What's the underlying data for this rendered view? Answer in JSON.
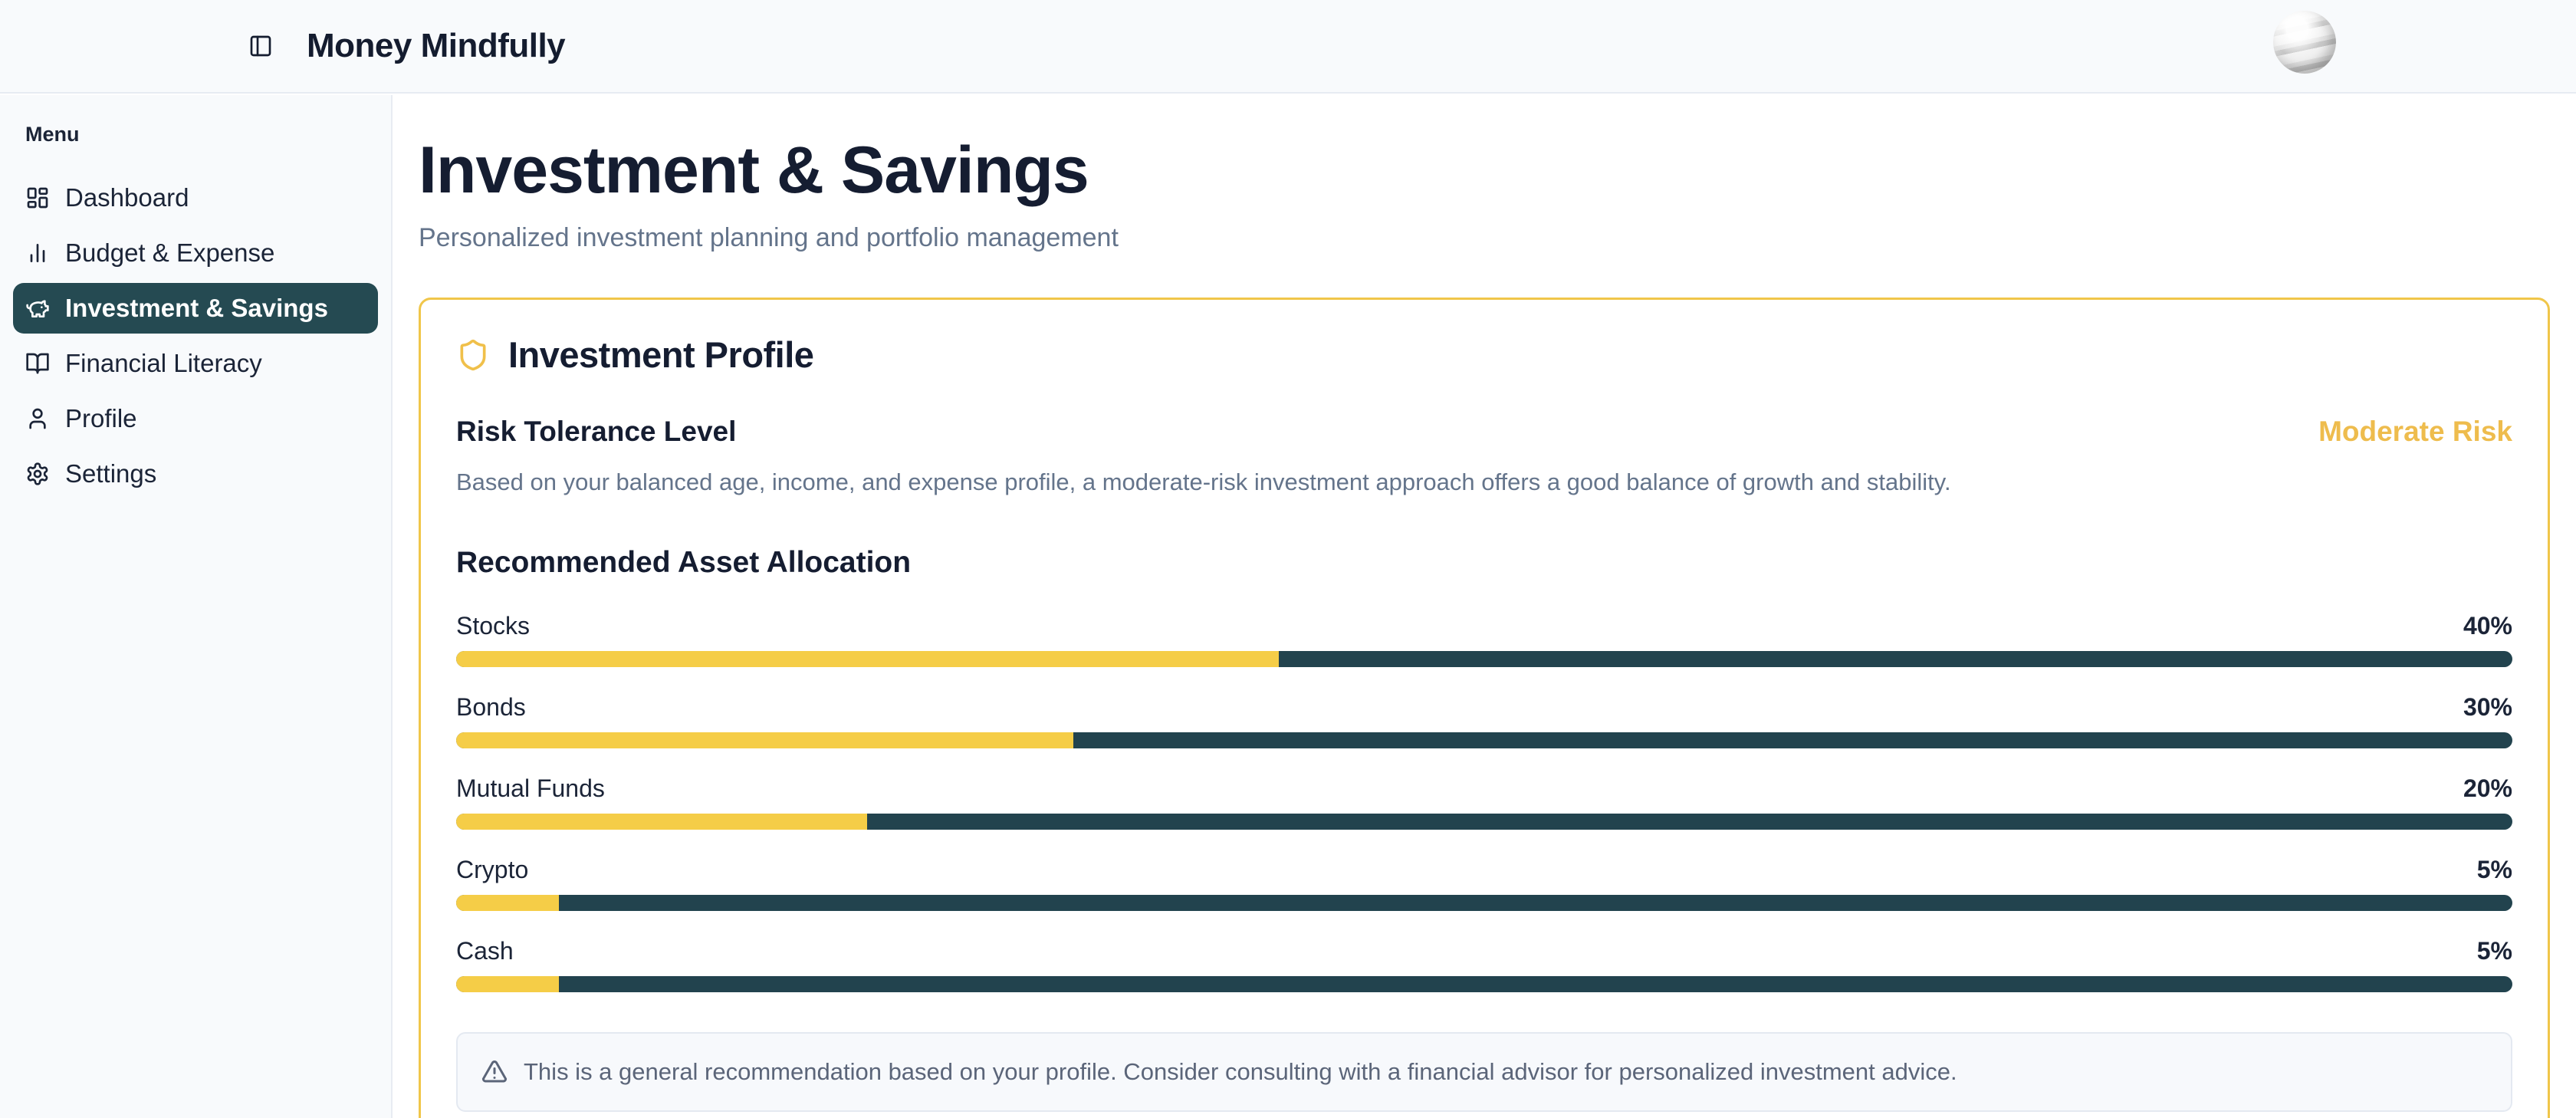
{
  "app": {
    "title": "Money Mindfully"
  },
  "sidebar": {
    "menu_label": "Menu",
    "items": [
      {
        "label": "Dashboard",
        "icon": "dashboard-icon",
        "active": false
      },
      {
        "label": "Budget & Expense",
        "icon": "bar-chart-icon",
        "active": false
      },
      {
        "label": "Investment & Savings",
        "icon": "piggy-bank-icon",
        "active": true
      },
      {
        "label": "Financial Literacy",
        "icon": "book-open-icon",
        "active": false
      },
      {
        "label": "Profile",
        "icon": "user-icon",
        "active": false
      },
      {
        "label": "Settings",
        "icon": "gear-icon",
        "active": false
      }
    ]
  },
  "page": {
    "title": "Investment & Savings",
    "subtitle": "Personalized investment planning and portfolio management"
  },
  "card": {
    "title": "Investment Profile",
    "icon": "shield-icon",
    "risk": {
      "heading": "Risk Tolerance Level",
      "level": "Moderate Risk",
      "description": "Based on your balanced age, income, and expense profile, a moderate-risk investment approach offers a good balance of growth and stability."
    },
    "allocation": {
      "heading": "Recommended Asset Allocation",
      "items": [
        {
          "label": "Stocks",
          "value": 40,
          "value_label": "40%"
        },
        {
          "label": "Bonds",
          "value": 30,
          "value_label": "30%"
        },
        {
          "label": "Mutual Funds",
          "value": 20,
          "value_label": "20%"
        },
        {
          "label": "Crypto",
          "value": 5,
          "value_label": "5%"
        },
        {
          "label": "Cash",
          "value": 5,
          "value_label": "5%"
        }
      ]
    },
    "note": "This is a general recommendation based on your profile. Consider consulting with a financial advisor for personalized investment advice."
  },
  "colors": {
    "accent_gold": "#f0c64a",
    "bar_fill": "#f5cd47",
    "bar_track": "#22434e",
    "sidebar_active": "#254a52",
    "risk_text": "#eebc4d",
    "muted_text": "#64748b",
    "dark_text": "#151d31",
    "surface": "#f8fafc"
  }
}
